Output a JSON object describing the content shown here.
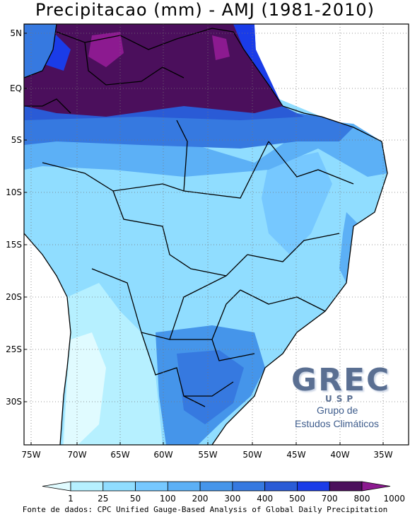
{
  "title": "Precipitacao (mm) - AMJ (1981-2010)",
  "map": {
    "lat_labels": [
      "5N",
      "EQ",
      "5S",
      "10S",
      "15S",
      "20S",
      "25S",
      "30S"
    ],
    "lon_labels": [
      "75W",
      "70W",
      "65W",
      "60W",
      "55W",
      "50W",
      "45W",
      "40W",
      "35W"
    ],
    "grid_lines": "dotted"
  },
  "colorbar": {
    "levels": [
      "1",
      "25",
      "50",
      "100",
      "200",
      "300",
      "400",
      "500",
      "700",
      "800",
      "1000"
    ],
    "colors": [
      "#e0fbff",
      "#b6f0ff",
      "#90ddff",
      "#76c8ff",
      "#5cb0f6",
      "#4595ea",
      "#3679e0",
      "#2a5bd6",
      "#1a3ce8",
      "#4b0f5c",
      "#8c1a90"
    ]
  },
  "logo": {
    "text": "GREC",
    "subtext": "USP",
    "line1": "Grupo de",
    "line2": "Estudos Climáticos"
  },
  "source": "Fonte de dados: CPC Unified Gauge-Based Analysis of Global Daily Precipitation"
}
